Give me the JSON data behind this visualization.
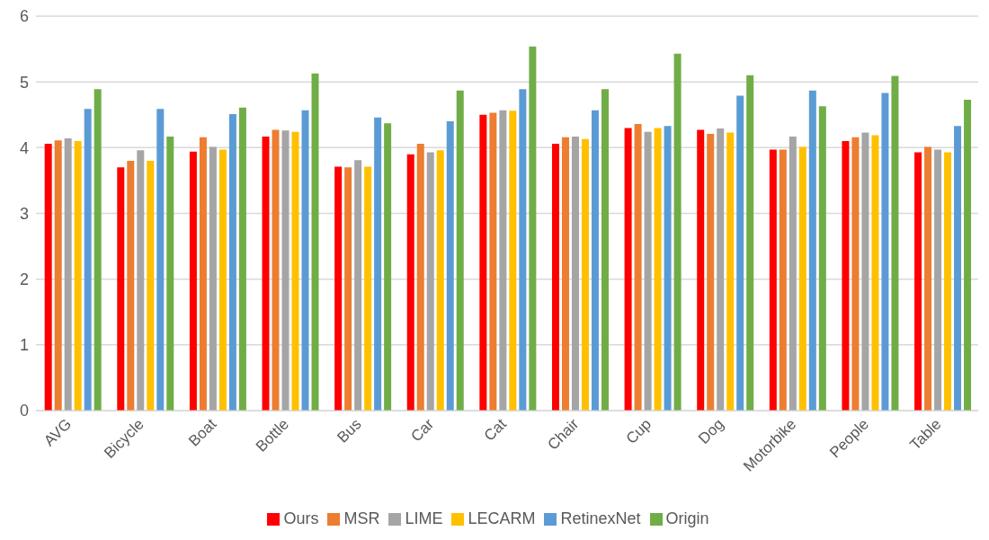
{
  "chart_data": {
    "type": "bar",
    "categories": [
      "AVG",
      "Bicycle",
      "Boat",
      "Bottle",
      "Bus",
      "Car",
      "Cat",
      "Chair",
      "Cup",
      "Dog",
      "Motorbike",
      "People",
      "Table"
    ],
    "series": [
      {
        "name": "Ours",
        "color": "#ff0000",
        "values": [
          4.06,
          3.7,
          3.94,
          4.17,
          3.71,
          3.9,
          4.5,
          4.06,
          4.3,
          4.27,
          3.97,
          4.1,
          3.93
        ]
      },
      {
        "name": "MSR",
        "color": "#ed7d31",
        "values": [
          4.11,
          3.8,
          4.16,
          4.27,
          3.7,
          4.06,
          4.53,
          4.16,
          4.36,
          4.21,
          3.97,
          4.16,
          4.01
        ]
      },
      {
        "name": "LIME",
        "color": "#a5a5a5",
        "values": [
          4.14,
          3.96,
          4.01,
          4.26,
          3.81,
          3.93,
          4.57,
          4.17,
          4.24,
          4.29,
          4.17,
          4.23,
          3.97
        ]
      },
      {
        "name": "LECARM",
        "color": "#ffc000",
        "values": [
          4.1,
          3.8,
          3.97,
          4.24,
          3.71,
          3.96,
          4.56,
          4.13,
          4.3,
          4.23,
          4.01,
          4.19,
          3.93
        ]
      },
      {
        "name": "RetinexNet",
        "color": "#5b9bd5",
        "values": [
          4.59,
          4.59,
          4.51,
          4.57,
          4.46,
          4.4,
          4.89,
          4.57,
          4.33,
          4.79,
          4.87,
          4.83,
          4.33
        ]
      },
      {
        "name": "Origin",
        "color": "#70ad47",
        "values": [
          4.89,
          4.17,
          4.61,
          5.13,
          4.37,
          4.87,
          5.54,
          4.89,
          5.43,
          5.1,
          4.63,
          5.09,
          4.73
        ]
      }
    ],
    "ylim": [
      0,
      6
    ],
    "yticks": [
      0,
      1,
      2,
      3,
      4,
      5,
      6
    ],
    "grid": "y",
    "legend": "bottom"
  }
}
